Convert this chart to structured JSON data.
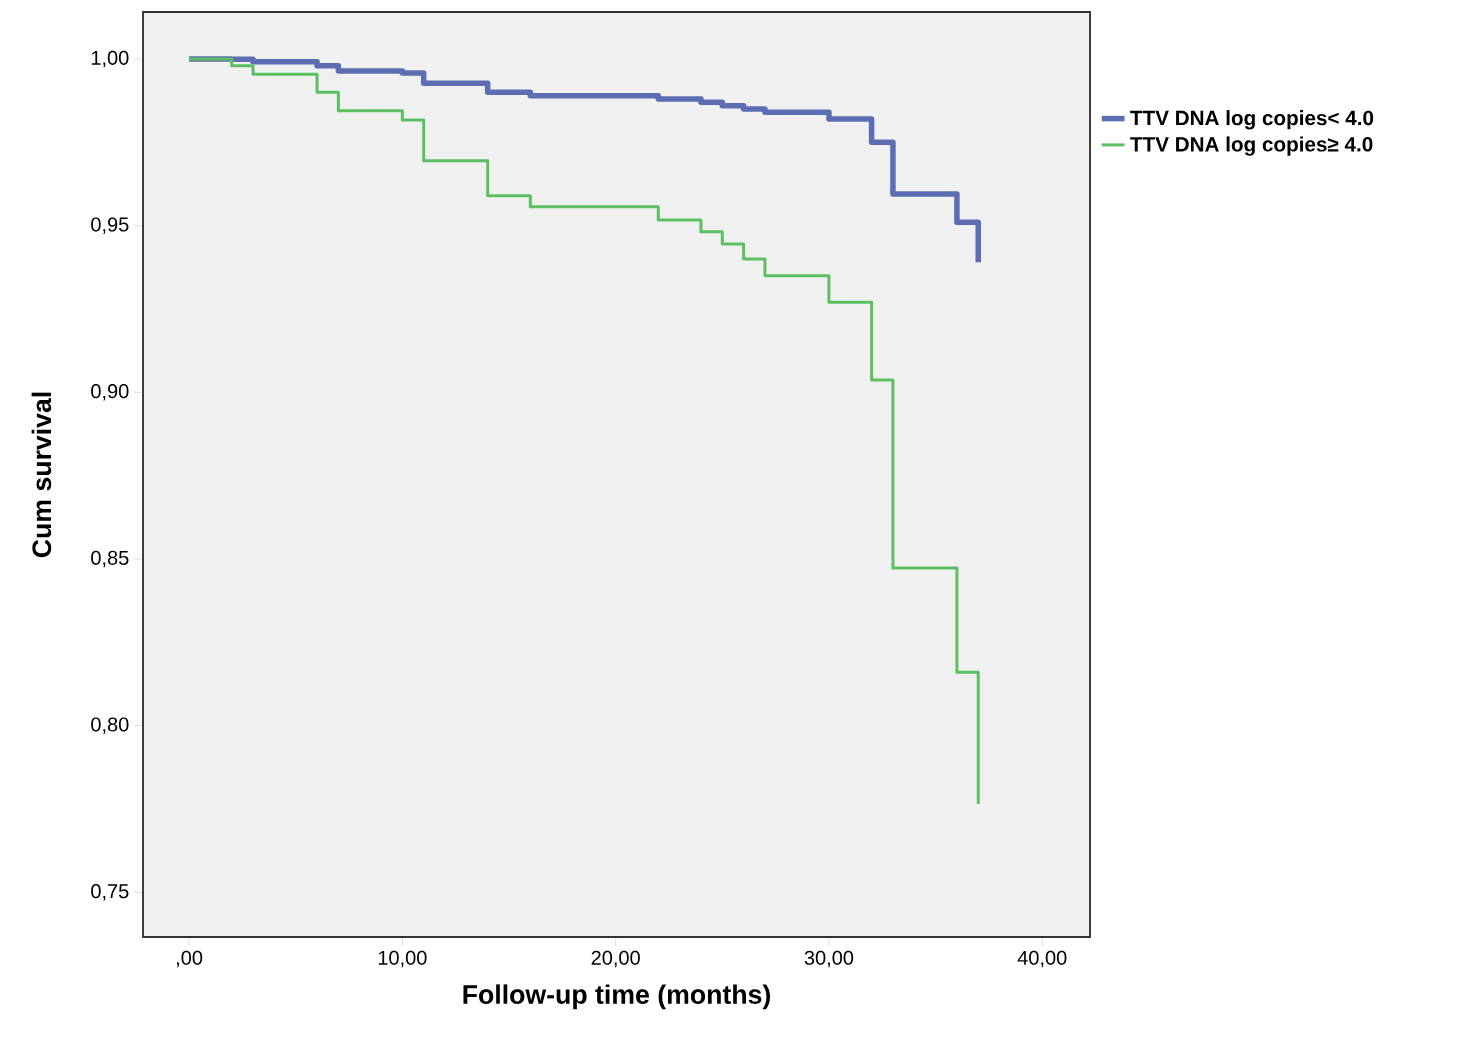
{
  "chart_data": {
    "type": "step",
    "xlabel": "Follow-up time (months)",
    "ylabel": "Cum survival",
    "xlim": [
      -2.16,
      42.24
    ],
    "ylim": [
      0.7366,
      1.0141
    ],
    "xticks": [
      {
        "value": 0,
        "label": ",00"
      },
      {
        "value": 10,
        "label": "10,00"
      },
      {
        "value": 20,
        "label": "20,00"
      },
      {
        "value": 30,
        "label": "30,00"
      },
      {
        "value": 40,
        "label": "40,00"
      }
    ],
    "yticks": [
      {
        "value": 0.75,
        "label": "0,75"
      },
      {
        "value": 0.8,
        "label": "0,80"
      },
      {
        "value": 0.85,
        "label": "0,85"
      },
      {
        "value": 0.9,
        "label": "0,90"
      },
      {
        "value": 0.95,
        "label": "0,95"
      },
      {
        "value": 1.0,
        "label": "1,00"
      }
    ],
    "grid": false,
    "legend": "right",
    "series": [
      {
        "name": "TTV DNA log copies< 4.0",
        "color": "#5d6db3",
        "x": [
          0,
          2,
          3,
          6,
          7,
          10,
          11,
          14,
          16,
          22,
          24,
          25,
          26,
          27,
          30,
          32,
          33,
          36,
          37
        ],
        "values": [
          1.0,
          0.9999,
          0.9992,
          0.998,
          0.9964,
          0.9958,
          0.9927,
          0.99,
          0.989,
          0.988,
          0.987,
          0.986,
          0.985,
          0.984,
          0.982,
          0.975,
          0.9595,
          0.951,
          0.939
        ]
      },
      {
        "name": "TTV DNA log copies≥ 4.0",
        "color": "#5cc062",
        "x": [
          0,
          2,
          3,
          6,
          7,
          10,
          11,
          14,
          16,
          22,
          24,
          25,
          26,
          27,
          30,
          32,
          33,
          36,
          37
        ],
        "values": [
          1.0,
          0.998,
          0.9954,
          0.99,
          0.9845,
          0.9817,
          0.9695,
          0.959,
          0.9557,
          0.9517,
          0.9482,
          0.9445,
          0.94,
          0.935,
          0.927,
          0.9037,
          0.8473,
          0.816,
          0.7765
        ]
      }
    ]
  }
}
